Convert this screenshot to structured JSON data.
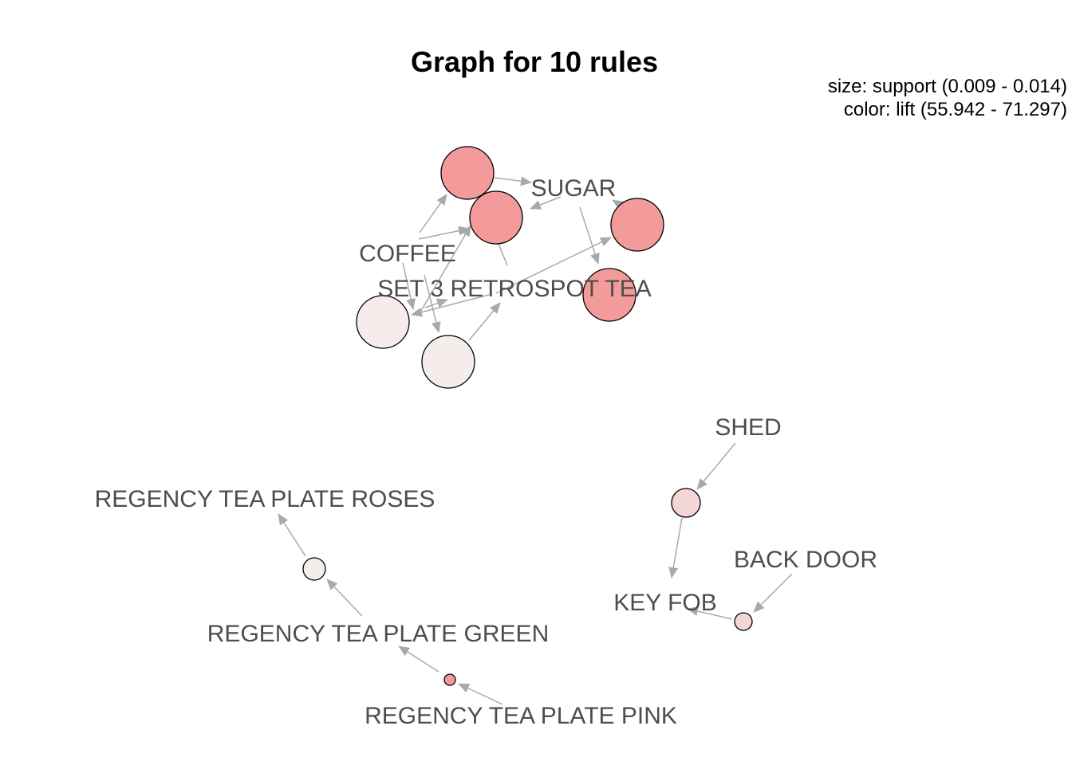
{
  "title": "Graph for 10 rules",
  "legend": {
    "size_line": "size: support (0.009 - 0.014)",
    "color_line": "color: lift (55.942 - 71.297)"
  },
  "colors": {
    "edge": "#a9a9a9",
    "lift_high": "#f39b9b",
    "lift_low": "#f5edec",
    "lift_mid": "#f3d6d6",
    "node_border": "#000000",
    "label": "#4d4d4d"
  },
  "items": [
    {
      "id": "sugar",
      "label": "SUGAR"
    },
    {
      "id": "coffee",
      "label": "COFFEE"
    },
    {
      "id": "set3",
      "label": "SET 3 RETROSPOT TEA"
    },
    {
      "id": "shed",
      "label": "SHED"
    },
    {
      "id": "keyfob",
      "label": "KEY FOB"
    },
    {
      "id": "backdoor",
      "label": "BACK DOOR"
    },
    {
      "id": "roses",
      "label": "REGENCY TEA PLATE ROSES"
    },
    {
      "id": "green",
      "label": "REGENCY TEA PLATE GREEN"
    },
    {
      "id": "pink",
      "label": "REGENCY TEA PLATE PINK"
    }
  ],
  "rules": [
    {
      "id": "r1",
      "lhs": [
        "coffee",
        "set3"
      ],
      "rhs": [
        "sugar"
      ],
      "color": "lift_high"
    },
    {
      "id": "r2",
      "lhs": [
        "sugar",
        "set3"
      ],
      "rhs": [
        "coffee"
      ],
      "color": "lift_high"
    },
    {
      "id": "r3",
      "lhs": [
        "coffee",
        "sugar"
      ],
      "rhs": [
        "set3"
      ],
      "color": "lift_high"
    },
    {
      "id": "r4",
      "lhs": [
        "set3",
        "sugar"
      ],
      "rhs": [
        "coffee"
      ],
      "color": "lift_high"
    },
    {
      "id": "r5",
      "lhs": [
        "set3"
      ],
      "rhs": [
        "coffee"
      ],
      "color": "lift_low"
    },
    {
      "id": "r6",
      "lhs": [
        "coffee"
      ],
      "rhs": [
        "set3"
      ],
      "color": "lift_low"
    },
    {
      "id": "r7",
      "lhs": [
        "shed"
      ],
      "rhs": [
        "keyfob"
      ],
      "color": "lift_mid"
    },
    {
      "id": "r8",
      "lhs": [
        "backdoor"
      ],
      "rhs": [
        "keyfob"
      ],
      "color": "lift_mid"
    },
    {
      "id": "r9",
      "lhs": [
        "green"
      ],
      "rhs": [
        "roses"
      ],
      "color": "lift_low"
    },
    {
      "id": "r10",
      "lhs": [
        "pink"
      ],
      "rhs": [
        "green"
      ],
      "color": "lift_high"
    }
  ]
}
